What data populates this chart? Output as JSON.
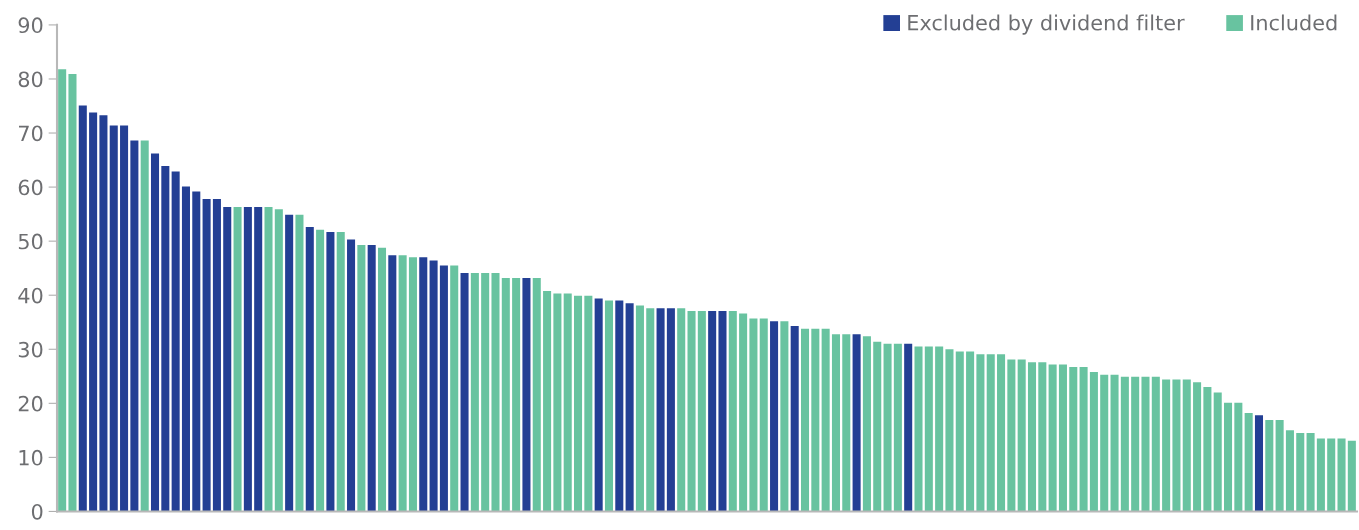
{
  "chart_data": {
    "type": "bar",
    "categories": [
      null,
      null,
      null,
      null,
      null,
      null,
      null,
      null,
      null,
      null,
      null,
      null,
      null,
      null,
      null,
      null,
      null,
      null,
      null,
      null,
      null,
      null,
      null,
      null,
      null,
      null,
      null,
      null,
      null,
      null,
      null,
      null,
      null,
      null,
      null,
      null,
      null,
      null,
      null,
      null,
      null,
      null,
      null,
      null,
      null,
      null,
      null,
      null,
      null,
      null,
      null,
      null,
      null,
      null,
      null,
      null,
      null,
      null,
      null,
      null,
      null,
      null,
      null,
      null,
      null,
      null,
      null,
      null,
      null,
      null,
      null,
      null,
      null,
      null,
      null,
      null,
      null,
      null,
      null,
      null,
      null,
      null,
      null,
      null,
      null,
      null,
      null,
      null,
      null,
      null,
      null,
      null,
      null,
      null,
      null,
      null,
      null,
      null,
      null,
      null,
      null,
      null,
      null,
      null,
      null,
      null,
      null,
      null,
      null,
      null,
      null,
      null,
      null,
      null,
      null,
      null,
      null,
      null,
      null,
      null,
      null,
      null,
      null,
      null,
      null,
      null
    ],
    "series": [
      {
        "name": "Excluded by dividend filter",
        "color": "#233f94",
        "values": [
          null,
          null,
          75.1,
          73.8,
          73.3,
          71.4,
          71.4,
          68.6,
          null,
          66.2,
          63.9,
          62.9,
          60.1,
          59.2,
          57.8,
          57.8,
          56.3,
          null,
          56.3,
          56.3,
          null,
          null,
          54.9,
          null,
          52.6,
          null,
          51.7,
          null,
          50.3,
          null,
          49.3,
          null,
          47.4,
          null,
          null,
          47.0,
          46.4,
          45.5,
          null,
          44.1,
          null,
          null,
          null,
          null,
          null,
          43.2,
          null,
          null,
          null,
          null,
          null,
          null,
          39.4,
          null,
          39.0,
          38.5,
          null,
          null,
          37.6,
          37.6,
          null,
          null,
          null,
          37.1,
          37.1,
          null,
          null,
          null,
          null,
          35.2,
          null,
          34.3,
          null,
          null,
          null,
          null,
          null,
          32.8,
          null,
          null,
          null,
          null,
          31.0,
          null,
          null,
          null,
          null,
          null,
          null,
          null,
          null,
          null,
          null,
          null,
          null,
          null,
          null,
          null,
          null,
          null,
          null,
          null,
          null,
          null,
          null,
          null,
          null,
          null,
          null,
          null,
          null,
          null,
          null,
          null,
          null,
          null,
          17.8,
          null,
          null,
          null,
          null,
          null,
          null,
          null,
          null,
          null
        ]
      },
      {
        "name": "Included",
        "color": "#68c3a0",
        "values": [
          81.8,
          80.9,
          null,
          null,
          null,
          null,
          null,
          null,
          68.6,
          null,
          null,
          null,
          null,
          null,
          null,
          null,
          null,
          56.3,
          null,
          null,
          56.3,
          55.9,
          null,
          54.9,
          null,
          52.1,
          null,
          51.7,
          null,
          49.3,
          null,
          48.8,
          null,
          47.4,
          47.0,
          null,
          null,
          null,
          45.5,
          null,
          44.1,
          44.1,
          44.1,
          43.2,
          43.2,
          null,
          43.2,
          40.8,
          40.3,
          40.3,
          39.9,
          39.9,
          null,
          39.0,
          null,
          null,
          38.1,
          37.6,
          null,
          null,
          37.6,
          37.1,
          37.1,
          null,
          null,
          37.1,
          36.6,
          35.7,
          35.7,
          null,
          35.2,
          null,
          33.8,
          33.8,
          33.8,
          32.8,
          32.8,
          null,
          32.4,
          31.4,
          31.0,
          31.0,
          null,
          30.5,
          30.5,
          30.5,
          30.0,
          29.6,
          29.6,
          29.1,
          29.1,
          29.1,
          28.1,
          28.1,
          27.6,
          27.6,
          27.2,
          27.2,
          26.7,
          26.7,
          25.8,
          25.3,
          25.3,
          24.9,
          24.9,
          24.9,
          24.9,
          24.4,
          24.4,
          24.4,
          23.9,
          23.0,
          22.0,
          20.1,
          20.1,
          18.2,
          null,
          16.9,
          16.9,
          15.0,
          14.5,
          14.5,
          13.5,
          13.5,
          13.5,
          13.1
        ]
      }
    ],
    "ylim": [
      0,
      90
    ],
    "yticks": [
      0,
      10,
      20,
      30,
      40,
      50,
      60,
      70,
      80,
      90
    ],
    "legend": "top right"
  }
}
